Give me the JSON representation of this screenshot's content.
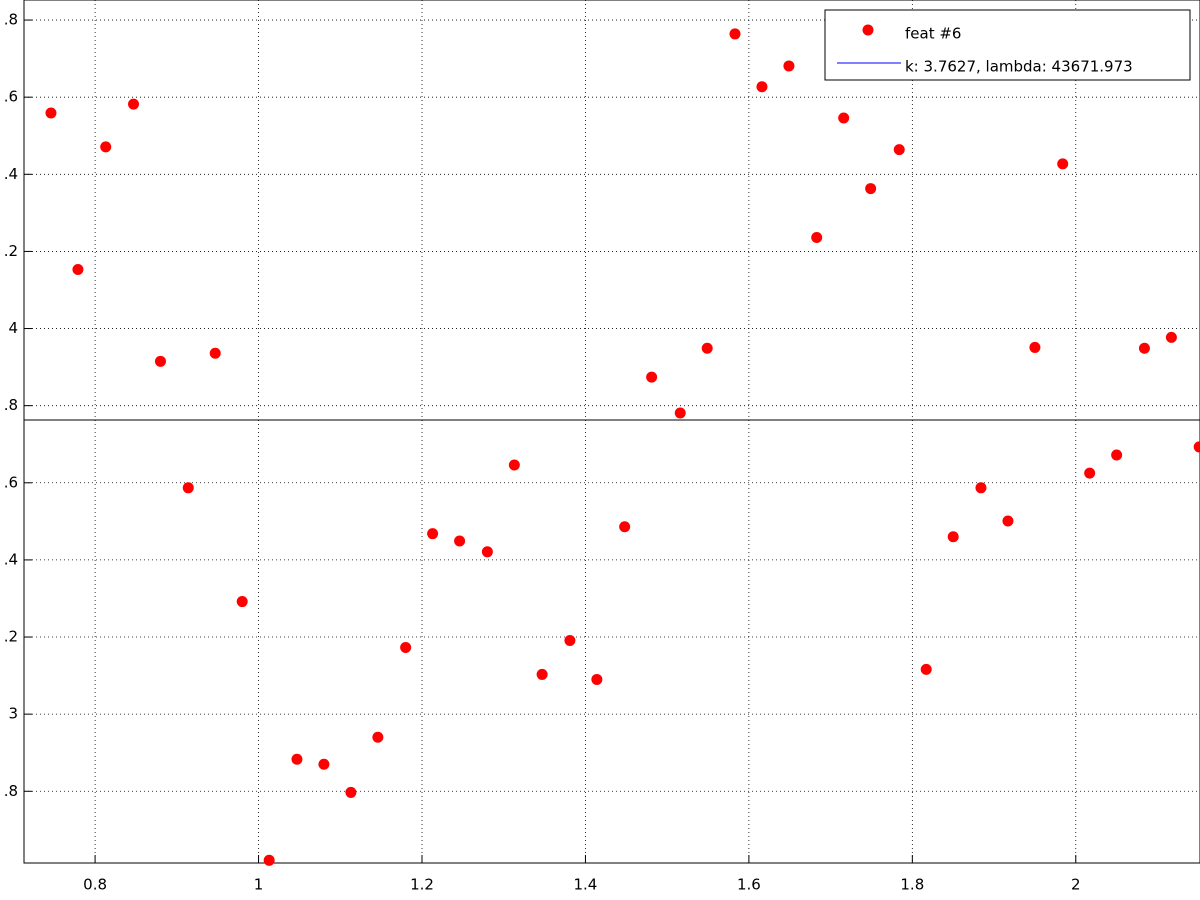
{
  "chart_data": {
    "type": "scatter",
    "series": [
      {
        "name": "feat #6",
        "color": "#ff0000",
        "x": [
          0.746,
          0.779,
          0.813,
          0.847,
          0.88,
          0.914,
          0.947,
          0.98,
          1.013,
          1.047,
          1.08,
          1.113,
          1.146,
          1.18,
          1.213,
          1.246,
          1.28,
          1.313,
          1.347,
          1.381,
          1.414,
          1.448,
          1.481,
          1.516,
          1.549,
          1.583,
          1.616,
          1.649,
          1.683,
          1.716,
          1.749,
          1.784,
          1.817,
          1.85,
          1.884,
          1.917,
          1.95,
          1.984,
          2.017,
          2.05,
          2.084,
          2.117,
          2.151
        ],
        "values": [
          4.559,
          4.153,
          4.471,
          4.582,
          3.915,
          3.587,
          3.936,
          3.292,
          2.621,
          2.883,
          2.87,
          2.797,
          2.94,
          3.173,
          3.468,
          3.449,
          3.421,
          3.646,
          3.103,
          3.191,
          3.09,
          3.486,
          3.874,
          3.781,
          3.949,
          4.764,
          4.627,
          4.681,
          4.236,
          4.546,
          4.363,
          4.464,
          3.116,
          3.46,
          3.587,
          3.501,
          3.951,
          4.427,
          3.625,
          3.672,
          3.949,
          3.977,
          3.693
        ]
      },
      {
        "name": "k: 3.7627, lambda: 43671.973",
        "color": "#0000ff",
        "hline": 3.7627
      }
    ],
    "xlim": [
      0.713,
      2.152
    ],
    "ylim": [
      2.614,
      4.852
    ],
    "xticks": [
      0.8,
      1,
      1.2,
      1.4,
      1.6,
      1.8,
      2
    ],
    "yticks": [
      {
        "value": 2.8,
        "label": ".8"
      },
      3,
      {
        "value": 3.2,
        "label": ".2"
      },
      {
        "value": 3.4,
        "label": ".4"
      },
      {
        "value": 3.6,
        "label": ".6"
      },
      {
        "value": 3.8,
        "label": ".8"
      },
      4,
      {
        "value": 4.2,
        "label": ".2"
      },
      {
        "value": 4.4,
        "label": ".4"
      },
      {
        "value": 4.6,
        "label": ".6"
      },
      {
        "value": 4.8,
        "label": ".8"
      }
    ],
    "grid": true,
    "legend": "top-right"
  }
}
